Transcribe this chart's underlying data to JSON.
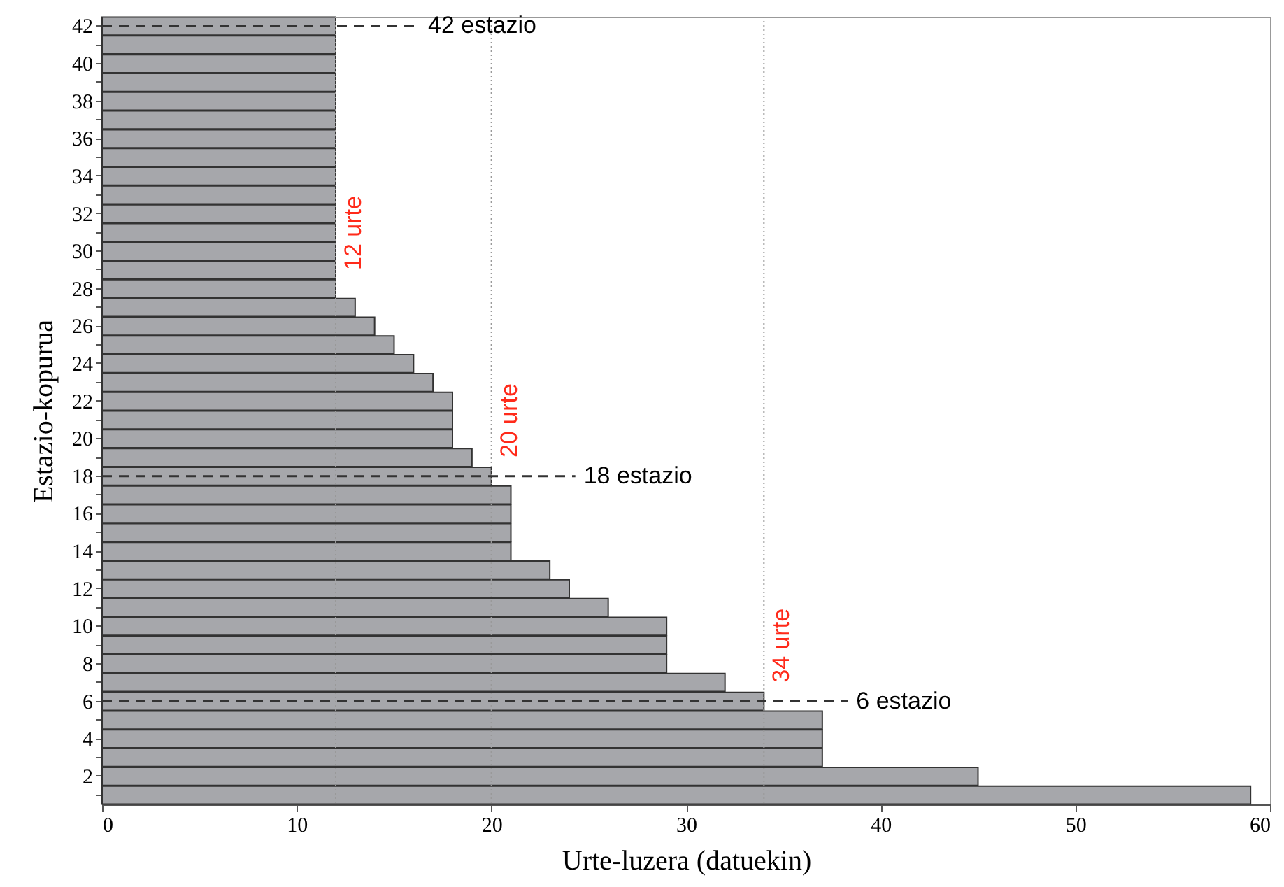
{
  "chart_data": {
    "type": "bar",
    "orientation": "horizontal",
    "xlabel": "Urte-luzera (datuekin)",
    "ylabel": "Estazio-kopurua",
    "categories": [
      "42",
      null,
      "40",
      null,
      "38",
      null,
      "36",
      null,
      "34",
      null,
      "32",
      null,
      "30",
      null,
      "28",
      null,
      "26",
      null,
      "24",
      null,
      "22",
      null,
      "20",
      null,
      "18",
      null,
      "16",
      null,
      "14",
      null,
      "12",
      null,
      "10",
      null,
      "8",
      null,
      "6",
      null,
      "4",
      null,
      "2",
      null
    ],
    "values": [
      12,
      12,
      12,
      12,
      12,
      12,
      12,
      12,
      12,
      12,
      12,
      12,
      12,
      12,
      12,
      13,
      14,
      15,
      16,
      17,
      18,
      18,
      18,
      19,
      20,
      21,
      21,
      21,
      21,
      23,
      24,
      26,
      29,
      29,
      29,
      32,
      34,
      37,
      37,
      37,
      45,
      59
    ],
    "color": "#a6a7ab",
    "xlim": [
      0,
      60
    ],
    "xticks": [
      0,
      10,
      20,
      30,
      40,
      50,
      60
    ],
    "grid": false,
    "ref_lines": [
      {
        "axis": "x",
        "value": 12,
        "label": "12 urte",
        "color": "#999999",
        "line_style": "dotted"
      },
      {
        "axis": "x",
        "value": 20,
        "label": "20 urte",
        "color": "#999999",
        "line_style": "dotted"
      },
      {
        "axis": "x",
        "value": 34,
        "label": "34 urte",
        "color": "#999999",
        "line_style": "dotted"
      },
      {
        "axis": "y",
        "value": "42",
        "label": "42 estazio",
        "color": "#333333",
        "line_style": "dashed"
      },
      {
        "axis": "y",
        "value": "18",
        "label": "18 estazio",
        "color": "#333333",
        "line_style": "dashed"
      },
      {
        "axis": "y",
        "value": "6",
        "label": "6 estazio",
        "color": "#333333",
        "line_style": "dashed"
      }
    ]
  }
}
